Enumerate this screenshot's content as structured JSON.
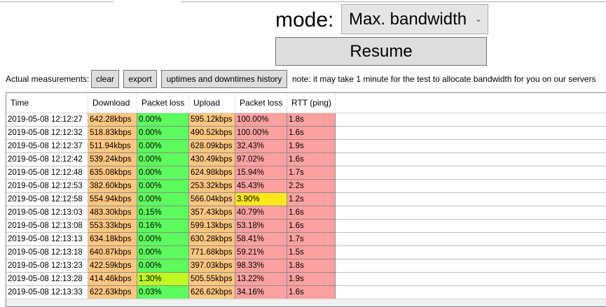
{
  "colors": {
    "orange": "#ffc680",
    "green": "#5dfb5d",
    "lime": "#bff91f",
    "yellow": "#ffe81a",
    "red": "#fca0a0",
    "button_bg": "#dddddd",
    "select_bg": "#e5e5e5"
  },
  "mode": {
    "label": "mode:",
    "selected": "Max. bandwidth",
    "chevron_icon": "chevron-down-icon"
  },
  "resume_label": "Resume",
  "toolbar": {
    "label": "Actual measurements:",
    "clear_label": "clear",
    "export_label": "export",
    "history_label": "uptimes and downtimes history",
    "note": "note: it may take 1 minute for the test to allocate bandwidth for you on our servers"
  },
  "table": {
    "columns": [
      "Time",
      "Download",
      "Packet loss",
      "Upload",
      "Packet loss",
      "RTT (ping)"
    ],
    "rows": [
      {
        "time": "2019-05-08 12:12:27",
        "download": "642.28kbps",
        "pl1": "0.00%",
        "upload": "595.12kbps",
        "pl2": "100.00%",
        "rtt": "1.8s",
        "c": [
          "orange",
          "green",
          "orange",
          "red",
          "red"
        ]
      },
      {
        "time": "2019-05-08 12:12:32",
        "download": "518.83kbps",
        "pl1": "0.00%",
        "upload": "490.52kbps",
        "pl2": "100.00%",
        "rtt": "1.6s",
        "c": [
          "orange",
          "green",
          "orange",
          "red",
          "red"
        ]
      },
      {
        "time": "2019-05-08 12:12:37",
        "download": "511.94kbps",
        "pl1": "0.00%",
        "upload": "628.09kbps",
        "pl2": "32.43%",
        "rtt": "1.9s",
        "c": [
          "orange",
          "green",
          "orange",
          "red",
          "red"
        ]
      },
      {
        "time": "2019-05-08 12:12:42",
        "download": "539.24kbps",
        "pl1": "0.00%",
        "upload": "430.49kbps",
        "pl2": "97.02%",
        "rtt": "1.6s",
        "c": [
          "orange",
          "green",
          "orange",
          "red",
          "red"
        ]
      },
      {
        "time": "2019-05-08 12:12:48",
        "download": "635.08kbps",
        "pl1": "0.00%",
        "upload": "624.98kbps",
        "pl2": "15.94%",
        "rtt": "1.7s",
        "c": [
          "orange",
          "green",
          "orange",
          "red",
          "red"
        ]
      },
      {
        "time": "2019-05-08 12:12:53",
        "download": "382.60kbps",
        "pl1": "0.00%",
        "upload": "253.32kbps",
        "pl2": "45.43%",
        "rtt": "2.2s",
        "c": [
          "orange",
          "green",
          "orange",
          "red",
          "red"
        ]
      },
      {
        "time": "2019-05-08 12:12:58",
        "download": "554.94kbps",
        "pl1": "0.00%",
        "upload": "566.04kbps",
        "pl2": "3.90%",
        "rtt": "1.2s",
        "c": [
          "orange",
          "green",
          "orange",
          "yellow",
          "red"
        ]
      },
      {
        "time": "2019-05-08 12:13:03",
        "download": "483.30kbps",
        "pl1": "0.15%",
        "upload": "357.43kbps",
        "pl2": "40.79%",
        "rtt": "1.6s",
        "c": [
          "orange",
          "green",
          "orange",
          "red",
          "red"
        ]
      },
      {
        "time": "2019-05-08 12:13:08",
        "download": "553.33kbps",
        "pl1": "0.16%",
        "upload": "599.13kbps",
        "pl2": "53.18%",
        "rtt": "1.6s",
        "c": [
          "orange",
          "green",
          "orange",
          "red",
          "red"
        ]
      },
      {
        "time": "2019-05-08 12:13:13",
        "download": "634.18kbps",
        "pl1": "0.00%",
        "upload": "630.28kbps",
        "pl2": "58.41%",
        "rtt": "1.7s",
        "c": [
          "orange",
          "green",
          "orange",
          "red",
          "red"
        ]
      },
      {
        "time": "2019-05-08 12:13:18",
        "download": "640.87kbps",
        "pl1": "0.00%",
        "upload": "771.68kbps",
        "pl2": "59.21%",
        "rtt": "1.5s",
        "c": [
          "orange",
          "green",
          "orange",
          "red",
          "red"
        ]
      },
      {
        "time": "2019-05-08 12:13:23",
        "download": "422.59kbps",
        "pl1": "0.00%",
        "upload": "397.03kbps",
        "pl2": "98.33%",
        "rtt": "1.8s",
        "c": [
          "orange",
          "green",
          "orange",
          "red",
          "red"
        ]
      },
      {
        "time": "2019-05-08 12:13:28",
        "download": "414.46kbps",
        "pl1": "1.30%",
        "upload": "505.55kbps",
        "pl2": "13.22%",
        "rtt": "1.9s",
        "c": [
          "orange",
          "lime",
          "orange",
          "red",
          "red"
        ]
      },
      {
        "time": "2019-05-08 12:13:33",
        "download": "622.63kbps",
        "pl1": "0.03%",
        "upload": "626.62kbps",
        "pl2": "34.16%",
        "rtt": "1.6s",
        "c": [
          "orange",
          "green",
          "orange",
          "red",
          "red"
        ]
      }
    ]
  }
}
